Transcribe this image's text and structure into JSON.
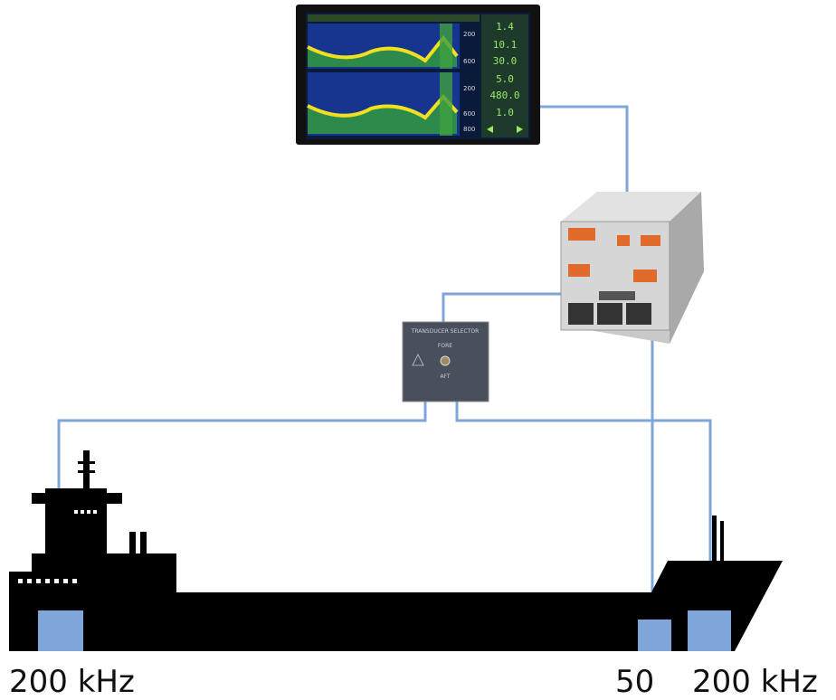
{
  "display": {
    "readouts": [
      "1.4",
      "10.1",
      "30.0",
      "5.0",
      "480.0",
      "1.0"
    ],
    "depth_scale": [
      "200",
      "400",
      "600",
      "800"
    ]
  },
  "selector": {
    "title": "TRANSDUCER SELECTOR",
    "fore": "FORE",
    "aft": "AFT"
  },
  "transducers": [
    {
      "label": "200 kHz"
    },
    {
      "label": "50"
    },
    {
      "label": "200 kHz"
    }
  ]
}
